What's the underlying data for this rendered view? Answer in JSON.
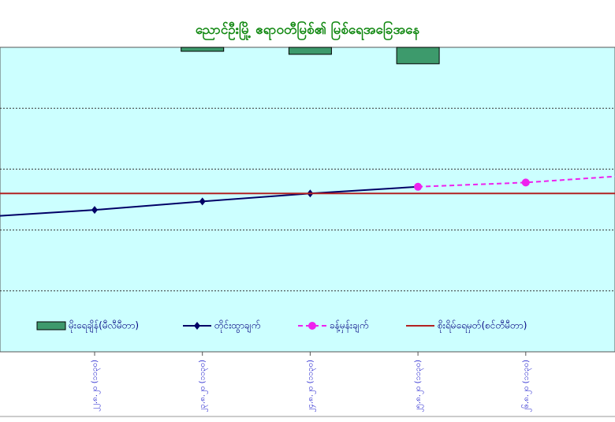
{
  "chart_data": {
    "type": "combo",
    "title": "ညောင်ဦးမြို့ ဧရာဝတီမြစ်၏ မြစ်ရေအခြေအနေ",
    "categories": [
      "၂၁.၈.၂၀ (၁၁၃၀)",
      "၂၂.၈.၂၀ (၁၁၃၀)",
      "၂၃.၈.၂၀ (၁၁၃၀)",
      "၂၄.၈.၂၀ (၁၁၃၀)",
      "၂၅.၈.၂၀ (၁၁၃၀)",
      "၂၆.၈.၂၀ (၁၁၃၀)",
      null
    ],
    "ylim": [
      0,
      5
    ],
    "yticks": [
      1,
      2,
      3,
      4
    ],
    "grid": true,
    "y2lim": [
      0,
      100
    ],
    "y2_inverted": true,
    "series": [
      {
        "name": "မိုးရေချိန်(မီလီမီတာ)",
        "type": "bar",
        "axis": "y2",
        "color": "#3d9a6c",
        "values": [
          null,
          null,
          1.3,
          2.3,
          5.4,
          null,
          null
        ]
      },
      {
        "name": "တိုင်းထွာချက်",
        "type": "line",
        "marker": "diamond",
        "dash": false,
        "color": "#000066",
        "values": [
          2.22,
          2.33,
          2.47,
          2.6,
          2.71,
          null,
          null
        ]
      },
      {
        "name": "ခန့်မှန်းချက်",
        "type": "line",
        "marker": "circle",
        "dash": true,
        "color": "#ee22ee",
        "values": [
          null,
          null,
          null,
          null,
          2.71,
          2.78,
          2.9
        ]
      },
      {
        "name": "စိုးရိမ်ရေမှတ်(စင်တီမီတာ)",
        "type": "hline",
        "color": "#b22222",
        "value": 2.6
      }
    ]
  }
}
